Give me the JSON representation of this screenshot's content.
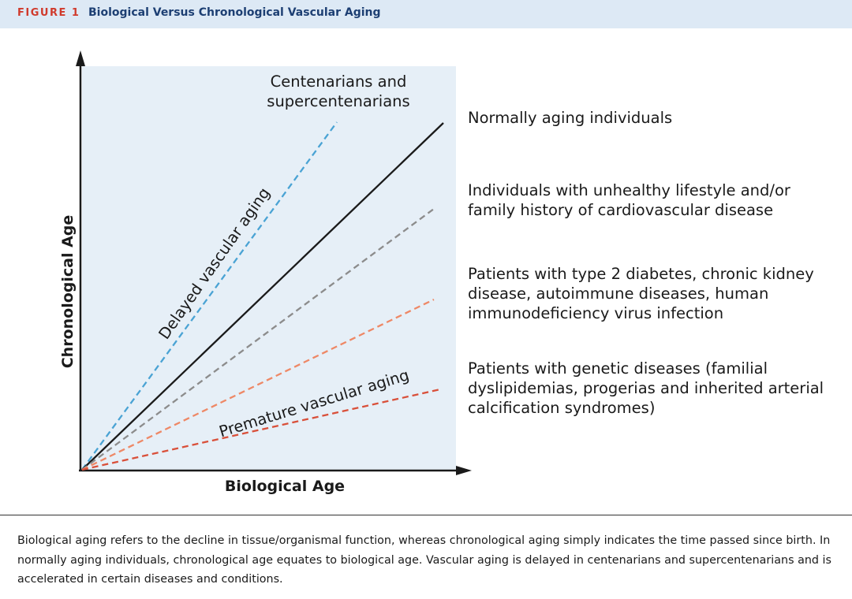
{
  "header": {
    "figure_tag": "FIGURE 1",
    "title": "Biological Versus Chronological Vascular Aging"
  },
  "diagram": {
    "x_axis_label": "Biological Age",
    "y_axis_label": "Chronological Age",
    "annotation_delayed": "Delayed vascular aging",
    "annotation_premature": "Premature vascular aging",
    "top_label_line1": "Centenarians and",
    "top_label_line2": "supercentenarians",
    "lines": [
      {
        "id": "centenarians",
        "style": "dashed",
        "color": "#4aa3d4"
      },
      {
        "id": "normal",
        "style": "solid",
        "color": "#1a1a1a",
        "label_lines": [
          "Normally aging individuals"
        ]
      },
      {
        "id": "lifestyle",
        "style": "dashed",
        "color": "#8c8c8c",
        "label_lines": [
          "Individuals with unhealthy lifestyle and/or",
          "family history of cardiovascular disease"
        ]
      },
      {
        "id": "chronic",
        "style": "dashed",
        "color": "#ee8866",
        "label_lines": [
          "Patients with type 2 diabetes, chronic kidney",
          "disease, autoimmune diseases, human",
          "immunodeficiency virus infection"
        ]
      },
      {
        "id": "genetic",
        "style": "dashed",
        "color": "#d9503a",
        "label_lines": [
          "Patients with genetic diseases (familial",
          "dyslipidemias, progerias and inherited arterial",
          "calcification syndromes)"
        ]
      }
    ],
    "colors": {
      "plot_bg": "#e6eff7",
      "axis": "#1a1a1a"
    }
  },
  "caption": "Biological aging refers to the decline in tissue/organismal function, whereas chronological aging simply indicates the time passed since birth. In normally aging individuals, chronological age equates to biological age. Vascular aging is delayed in centenarians and supercentenarians and is accelerated in certain diseases and conditions."
}
